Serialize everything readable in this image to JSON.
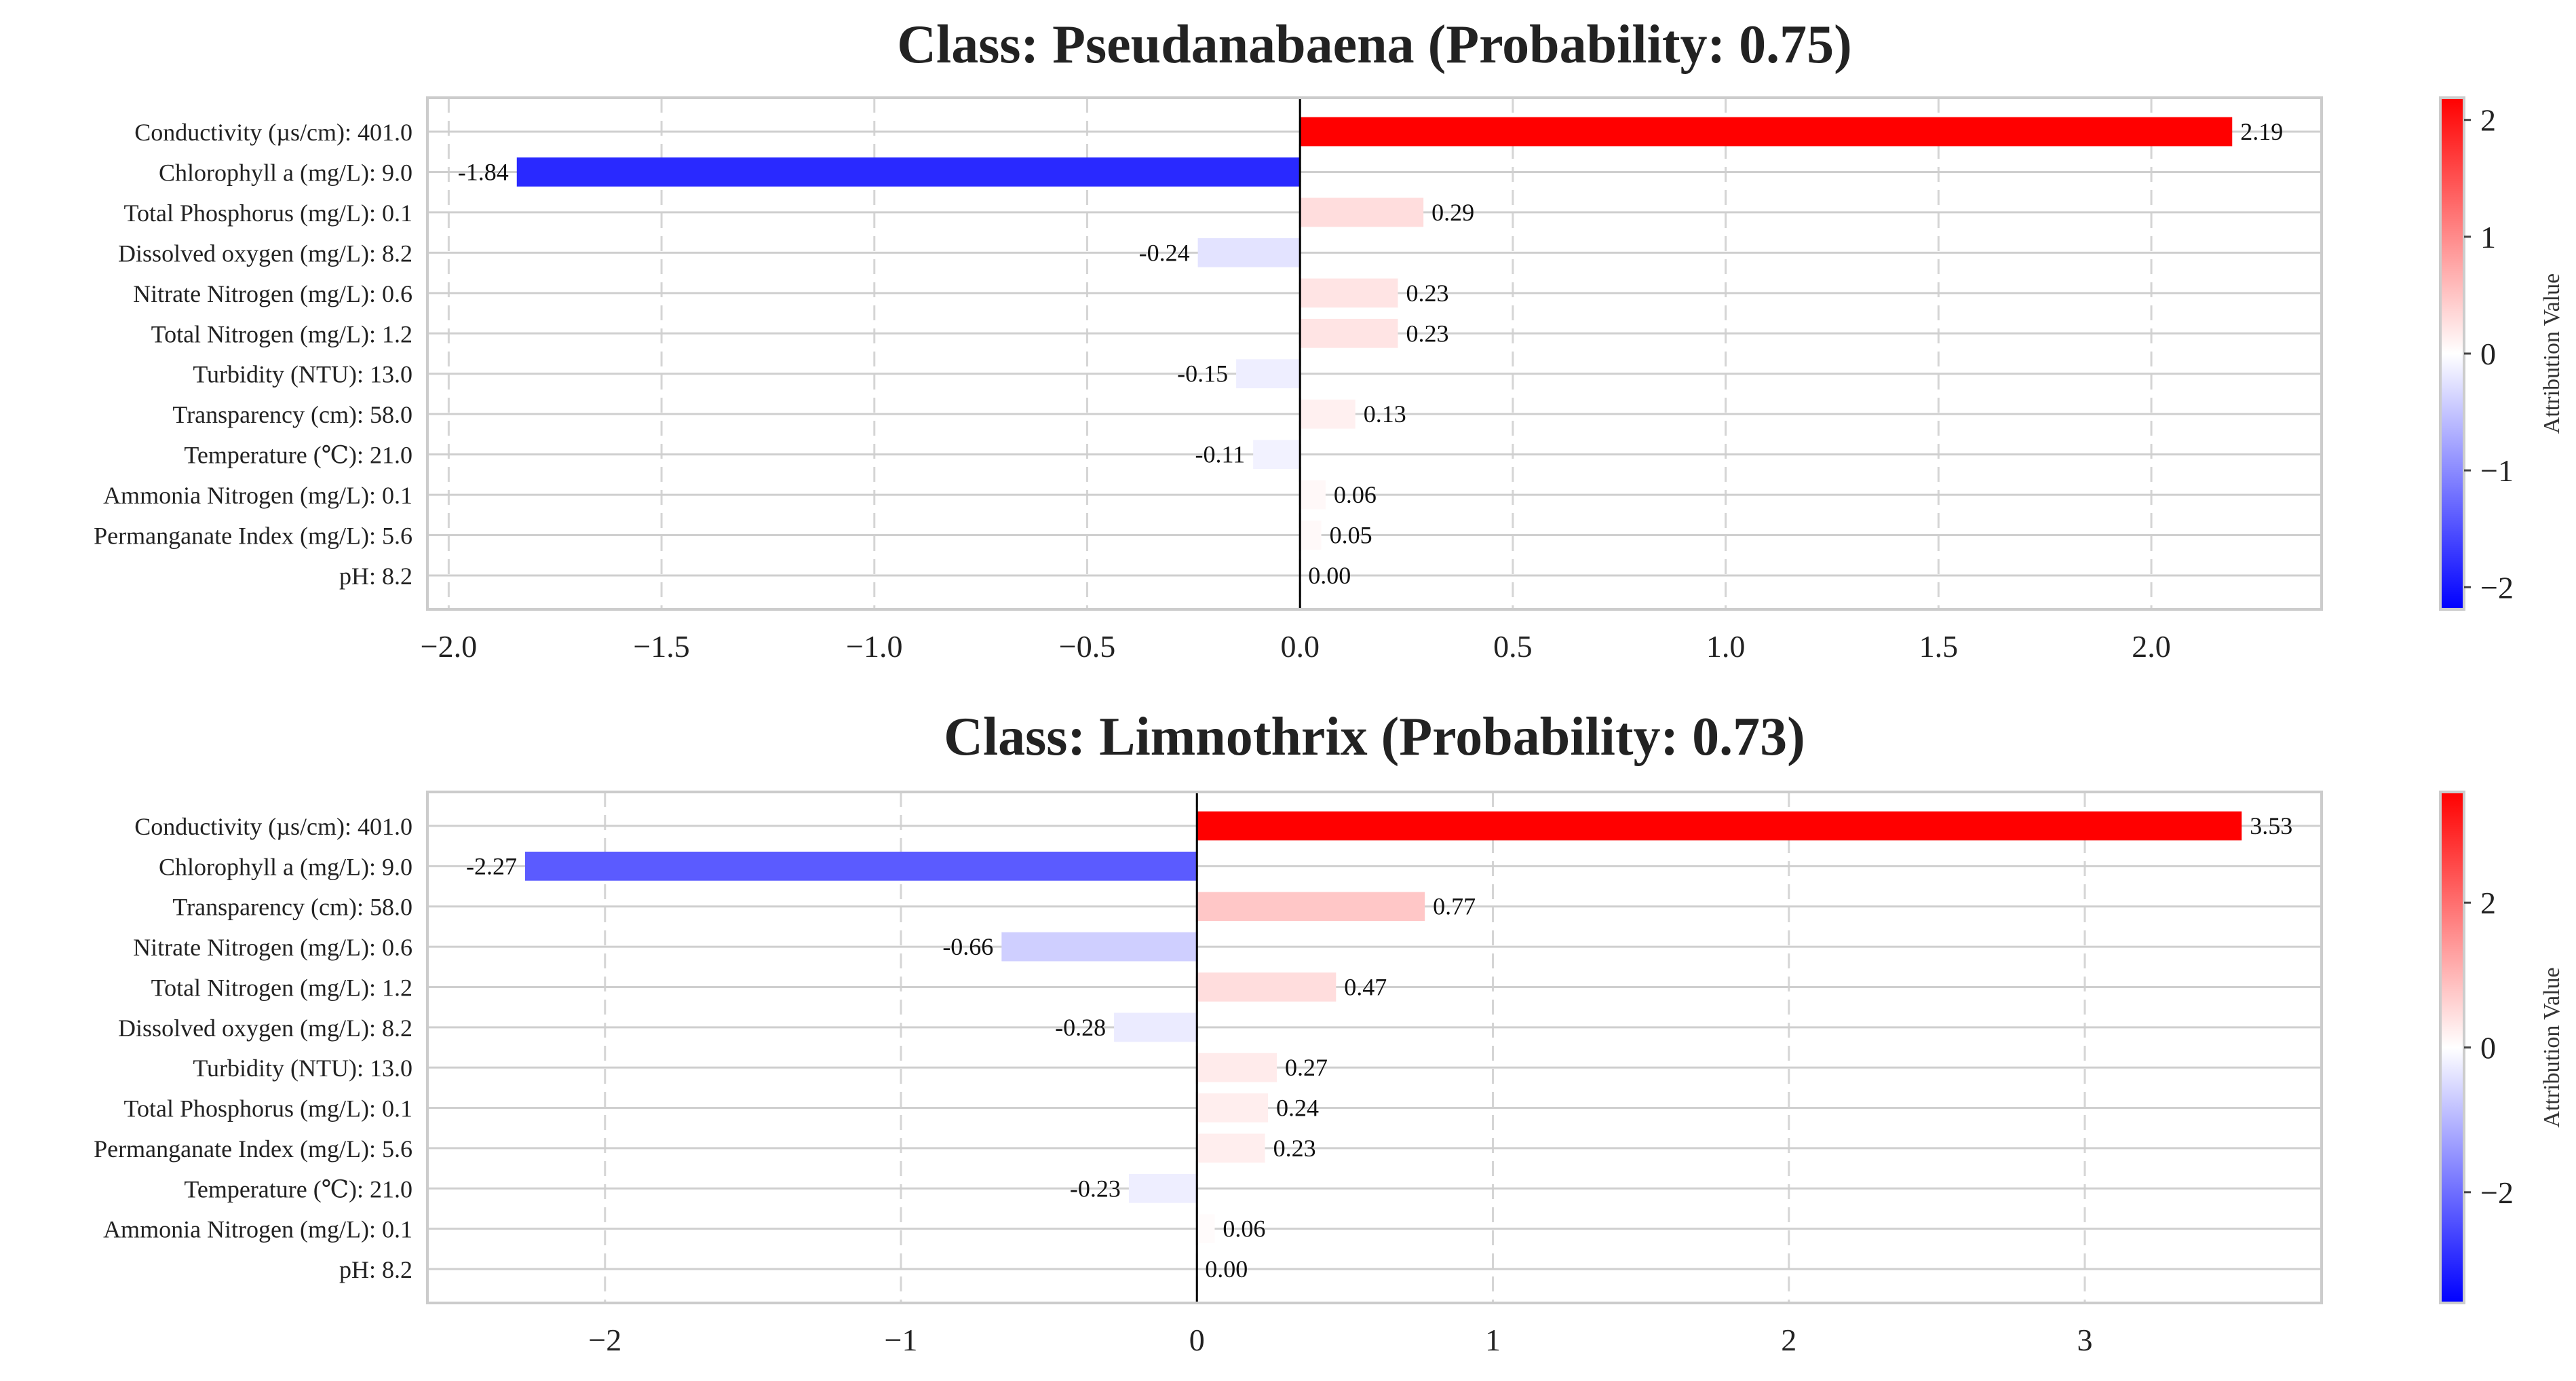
{
  "chart_data": [
    {
      "type": "bar",
      "orientation": "horizontal",
      "title": "Class: Pseudanabaena (Probability: 0.75)",
      "categories": [
        "Conductivity (µs/cm): 401.0",
        "Chlorophyll a (mg/L): 9.0",
        "Total Phosphorus (mg/L): 0.1",
        "Dissolved oxygen (mg/L): 8.2",
        "Nitrate Nitrogen (mg/L): 0.6",
        "Total Nitrogen (mg/L): 1.2",
        "Turbidity (NTU): 13.0",
        "Transparency (cm): 58.0",
        "Temperature (℃): 21.0",
        "Ammonia Nitrogen (mg/L): 0.1",
        "Permanganate Index (mg/L): 5.6",
        "pH: 8.2"
      ],
      "values": [
        2.19,
        -1.84,
        0.29,
        -0.24,
        0.23,
        0.23,
        -0.15,
        0.13,
        -0.11,
        0.06,
        0.05,
        0.0
      ],
      "value_labels": [
        "2.19",
        "-1.84",
        "0.29",
        "-0.24",
        "0.23",
        "0.23",
        "-0.15",
        "0.13",
        "-0.11",
        "0.06",
        "0.05",
        "0.00"
      ],
      "xlim": [
        -2.05,
        2.4
      ],
      "xticks": [
        -2.0,
        -1.5,
        -1.0,
        -0.5,
        0.0,
        0.5,
        1.0,
        1.5,
        2.0
      ],
      "xtick_labels": [
        "−2.0",
        "−1.5",
        "−1.0",
        "−0.5",
        "0.0",
        "0.5",
        "1.0",
        "1.5",
        "2.0"
      ],
      "grid": true,
      "colormap": "bwr",
      "colorbar": {
        "label": "Attribution Value",
        "range": [
          -2.19,
          2.19
        ],
        "ticks": [
          2,
          1,
          0,
          -1,
          -2
        ],
        "tick_labels": [
          "2",
          "1",
          "0",
          "−1",
          "−2"
        ]
      }
    },
    {
      "type": "bar",
      "orientation": "horizontal",
      "title": "Class: Limnothrix (Probability: 0.73)",
      "categories": [
        "Conductivity (µs/cm): 401.0",
        "Chlorophyll a (mg/L): 9.0",
        "Transparency (cm): 58.0",
        "Nitrate Nitrogen (mg/L): 0.6",
        "Total Nitrogen (mg/L): 1.2",
        "Dissolved oxygen (mg/L): 8.2",
        "Turbidity (NTU): 13.0",
        "Total Phosphorus (mg/L): 0.1",
        "Permanganate Index (mg/L): 5.6",
        "Temperature (℃): 21.0",
        "Ammonia Nitrogen (mg/L): 0.1",
        "pH: 8.2"
      ],
      "values": [
        3.53,
        -2.27,
        0.77,
        -0.66,
        0.47,
        -0.28,
        0.27,
        0.24,
        0.23,
        -0.23,
        0.06,
        0.0
      ],
      "value_labels": [
        "3.53",
        "-2.27",
        "0.77",
        "-0.66",
        "0.47",
        "-0.28",
        "0.27",
        "0.24",
        "0.23",
        "-0.23",
        "0.06",
        "0.00"
      ],
      "xlim": [
        -2.6,
        3.8
      ],
      "xticks": [
        -2,
        -1,
        0,
        1,
        2,
        3
      ],
      "xtick_labels": [
        "−2",
        "−1",
        "0",
        "1",
        "2",
        "3"
      ],
      "grid": true,
      "colormap": "bwr",
      "colorbar": {
        "label": "Attribution Value",
        "range": [
          -3.53,
          3.53
        ],
        "ticks": [
          2,
          0,
          -2
        ],
        "tick_labels": [
          "2",
          "0",
          "−2"
        ]
      }
    }
  ]
}
